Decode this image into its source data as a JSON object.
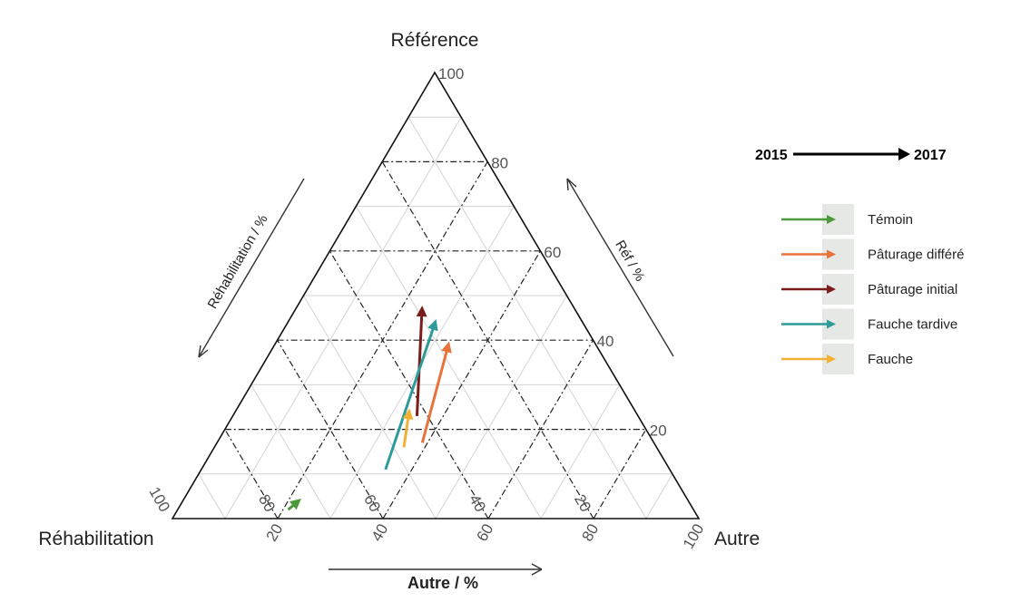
{
  "chart_data": {
    "type": "ternary",
    "axes": {
      "top": {
        "vertex_label": "Référence",
        "axis_title": "Réf / %"
      },
      "left": {
        "vertex_label": "Réhabilitation",
        "axis_title": "Réhabilitation / %"
      },
      "right": {
        "vertex_label": "Autre",
        "axis_title": "Autre / %"
      }
    },
    "ticks": {
      "reference": [
        "20",
        "40",
        "60",
        "80",
        "100"
      ],
      "rehabilitation": [
        "20",
        "40",
        "60",
        "80",
        "100"
      ],
      "autre": [
        "20",
        "40",
        "60",
        "80",
        "100"
      ]
    },
    "period": {
      "start": "2015",
      "end": "2017"
    },
    "series": [
      {
        "name": "Témoin",
        "color": "#4d9a3a",
        "start": {
          "reference": 2,
          "rehabilitation": 77,
          "autre": 21
        },
        "end": {
          "reference": 4,
          "rehabilitation": 74,
          "autre": 22
        }
      },
      {
        "name": "Pâturage différé",
        "color": "#e8733a",
        "start": {
          "reference": 17,
          "rehabilitation": 44,
          "autre": 39
        },
        "end": {
          "reference": 39,
          "rehabilitation": 28,
          "autre": 33
        }
      },
      {
        "name": "Pâturage initial",
        "color": "#7b1c1c",
        "start": {
          "reference": 23,
          "rehabilitation": 42,
          "autre": 35
        },
        "end": {
          "reference": 47,
          "rehabilitation": 29,
          "autre": 24
        }
      },
      {
        "name": "Fauche tardive",
        "color": "#2e9b9b",
        "start": {
          "reference": 11,
          "rehabilitation": 54,
          "autre": 35
        },
        "end": {
          "reference": 44,
          "rehabilitation": 28,
          "autre": 28
        }
      },
      {
        "name": "Fauche",
        "color": "#f2b134",
        "start": {
          "reference": 16,
          "rehabilitation": 48,
          "autre": 36
        },
        "end": {
          "reference": 24,
          "rehabilitation": 43,
          "autre": 33
        }
      }
    ],
    "grid": true,
    "major_gridlines": "dash-dot",
    "legend_position": "right"
  }
}
